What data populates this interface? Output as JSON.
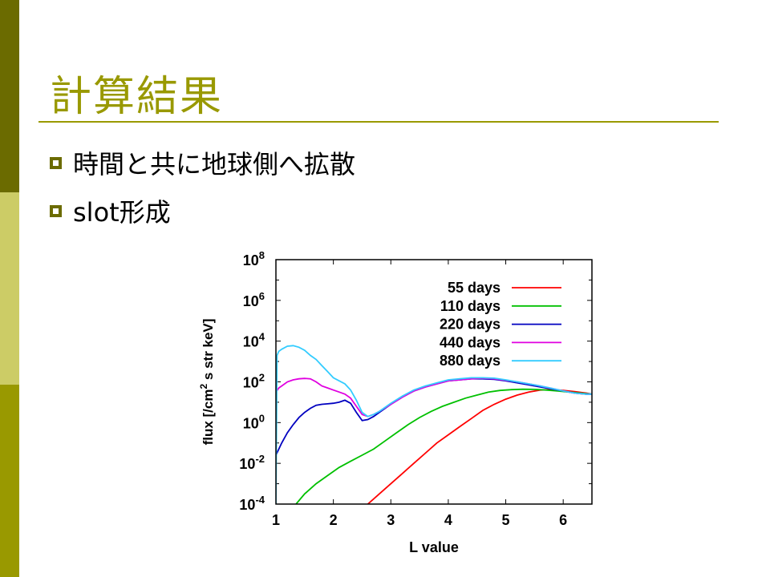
{
  "slide": {
    "title": "計算結果",
    "bullets": [
      "時間と共に地球側へ拡散",
      "slot形成"
    ]
  },
  "colors": {
    "theme_dark": "#6b6b00",
    "theme_light": "#cccc66",
    "theme_mid": "#999900"
  },
  "chart_data": {
    "type": "line",
    "xlabel": "L value",
    "ylabel": "flux [/cm2 s str keV]",
    "xlim": [
      1,
      6.5
    ],
    "ylim": [
      -4,
      8
    ],
    "y_scale": "log10",
    "x_ticks": [
      1,
      2,
      3,
      4,
      5,
      6
    ],
    "y_ticks": [
      {
        "base": "10",
        "exp": "-4"
      },
      {
        "base": "10",
        "exp": "-2"
      },
      {
        "base": "10",
        "exp": "0"
      },
      {
        "base": "10",
        "exp": "2"
      },
      {
        "base": "10",
        "exp": "4"
      },
      {
        "base": "10",
        "exp": "6"
      },
      {
        "base": "10",
        "exp": "8"
      }
    ],
    "legend_position": "top-right",
    "series": [
      {
        "name": "55 days",
        "color": "#ff0000",
        "x": [
          2.6,
          2.8,
          3.0,
          3.2,
          3.4,
          3.6,
          3.8,
          4.0,
          4.2,
          4.4,
          4.6,
          4.8,
          5.0,
          5.2,
          5.4,
          5.6,
          5.8,
          6.0,
          6.2,
          6.4,
          6.5
        ],
        "y": [
          -4.0,
          -3.5,
          -3.0,
          -2.5,
          -2.0,
          -1.5,
          -1.0,
          -0.6,
          -0.2,
          0.2,
          0.6,
          0.9,
          1.15,
          1.35,
          1.5,
          1.6,
          1.62,
          1.58,
          1.52,
          1.45,
          1.4
        ]
      },
      {
        "name": "110 days",
        "color": "#00c000",
        "x": [
          1.35,
          1.5,
          1.7,
          1.9,
          2.1,
          2.3,
          2.5,
          2.7,
          2.9,
          3.1,
          3.3,
          3.5,
          3.7,
          3.9,
          4.1,
          4.3,
          4.5,
          4.7,
          4.9,
          5.1,
          5.3,
          5.5,
          5.7,
          5.9,
          6.1,
          6.3,
          6.5
        ],
        "y": [
          -4.0,
          -3.5,
          -3.0,
          -2.6,
          -2.2,
          -1.9,
          -1.6,
          -1.3,
          -0.9,
          -0.5,
          -0.1,
          0.25,
          0.55,
          0.8,
          1.0,
          1.2,
          1.35,
          1.5,
          1.58,
          1.62,
          1.64,
          1.63,
          1.6,
          1.55,
          1.5,
          1.45,
          1.4
        ]
      },
      {
        "name": "220 days",
        "color": "#0000c0",
        "x": [
          1.0,
          1.05,
          1.1,
          1.2,
          1.3,
          1.4,
          1.5,
          1.6,
          1.7,
          1.8,
          1.9,
          2.0,
          2.1,
          2.2,
          2.3,
          2.4,
          2.5,
          2.6,
          2.7,
          2.8,
          3.0,
          3.2,
          3.4,
          3.6,
          3.8,
          4.0,
          4.2,
          4.4,
          4.6,
          4.8,
          5.0,
          5.2,
          5.4,
          5.6,
          5.8,
          6.0,
          6.2,
          6.4,
          6.5
        ],
        "y": [
          -1.6,
          -1.3,
          -1.0,
          -0.5,
          -0.1,
          0.25,
          0.5,
          0.7,
          0.85,
          0.9,
          0.92,
          0.95,
          1.0,
          1.1,
          0.95,
          0.5,
          0.1,
          0.15,
          0.3,
          0.5,
          0.9,
          1.25,
          1.55,
          1.75,
          1.9,
          2.05,
          2.1,
          2.15,
          2.15,
          2.12,
          2.05,
          1.95,
          1.85,
          1.75,
          1.65,
          1.55,
          1.45,
          1.4,
          1.4
        ]
      },
      {
        "name": "440 days",
        "color": "#e000e0",
        "x": [
          1.0,
          1.05,
          1.1,
          1.2,
          1.3,
          1.4,
          1.5,
          1.6,
          1.7,
          1.8,
          1.9,
          2.0,
          2.1,
          2.2,
          2.3,
          2.4,
          2.5,
          2.6,
          2.7,
          2.8,
          3.0,
          3.2,
          3.4,
          3.6,
          3.8,
          4.0,
          4.2,
          4.4,
          4.6,
          4.8,
          5.0,
          5.2,
          5.4,
          5.6,
          5.8,
          6.0,
          6.2,
          6.4,
          6.5
        ],
        "y": [
          1.5,
          1.7,
          1.8,
          2.0,
          2.1,
          2.15,
          2.17,
          2.15,
          2.0,
          1.8,
          1.7,
          1.6,
          1.5,
          1.4,
          1.2,
          0.8,
          0.4,
          0.3,
          0.4,
          0.55,
          0.9,
          1.25,
          1.55,
          1.75,
          1.9,
          2.05,
          2.1,
          2.15,
          2.18,
          2.15,
          2.08,
          2.0,
          1.9,
          1.8,
          1.68,
          1.55,
          1.45,
          1.4,
          1.4
        ]
      },
      {
        "name": "880 days",
        "color": "#33ccff",
        "x": [
          1.0,
          1.02,
          1.05,
          1.1,
          1.2,
          1.3,
          1.4,
          1.5,
          1.6,
          1.7,
          1.8,
          1.9,
          2.0,
          2.1,
          2.2,
          2.3,
          2.4,
          2.5,
          2.6,
          2.7,
          2.8,
          3.0,
          3.2,
          3.4,
          3.6,
          3.8,
          4.0,
          4.2,
          4.4,
          4.6,
          4.8,
          5.0,
          5.2,
          5.4,
          5.6,
          5.8,
          6.0,
          6.2,
          6.4,
          6.5
        ],
        "y": [
          -4.0,
          3.3,
          3.5,
          3.6,
          3.75,
          3.78,
          3.7,
          3.55,
          3.3,
          3.1,
          2.8,
          2.5,
          2.2,
          2.05,
          1.9,
          1.6,
          1.1,
          0.5,
          0.3,
          0.4,
          0.55,
          0.95,
          1.3,
          1.6,
          1.8,
          1.95,
          2.1,
          2.15,
          2.2,
          2.2,
          2.18,
          2.1,
          2.0,
          1.9,
          1.8,
          1.68,
          1.55,
          1.45,
          1.4,
          1.4
        ]
      }
    ]
  }
}
